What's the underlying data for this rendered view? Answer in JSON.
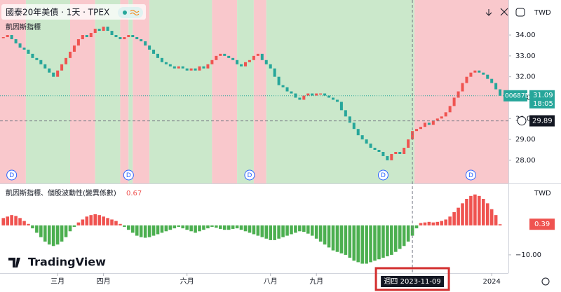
{
  "chart_data": [
    {
      "type": "candlestick",
      "title": "國泰20年美債 · 1天 · TPEX",
      "indicator_name": "凱因斯指標",
      "currency": "TWD",
      "symbol": "00687B",
      "countdown": "18:05",
      "up_color": "#ef5350",
      "down_color": "#26a69a",
      "series": [
        {
          "name": "00687B",
          "values": [
            33.9,
            34.0,
            33.8,
            33.6,
            33.4,
            33.3,
            33.1,
            32.9,
            32.8,
            32.6,
            32.4,
            32.2,
            32.0,
            32.3,
            32.6,
            32.9,
            33.2,
            33.5,
            33.8,
            34.0,
            33.9,
            34.1,
            34.3,
            34.2,
            34.4,
            34.2,
            34.0,
            33.9,
            33.8,
            33.9,
            34.0,
            33.9,
            33.8,
            33.7,
            33.5,
            33.3,
            33.1,
            32.9,
            32.7,
            32.6,
            32.5,
            32.4,
            32.5,
            32.4,
            32.3,
            32.4,
            32.3,
            32.5,
            32.4,
            32.6,
            32.8,
            33.0,
            33.1,
            33.0,
            32.9,
            32.8,
            32.6,
            32.5,
            32.7,
            32.8,
            33.0,
            33.1,
            32.8,
            32.6,
            32.4,
            32.0,
            31.6,
            31.5,
            31.3,
            31.2,
            31.0,
            30.9,
            31.1,
            31.2,
            31.1,
            31.2,
            31.2,
            31.1,
            31.0,
            30.9,
            30.8,
            30.4,
            30.1,
            29.8,
            29.5,
            29.2,
            29.0,
            28.8,
            28.6,
            28.5,
            28.4,
            28.2,
            28.0,
            28.3,
            28.4,
            28.3,
            28.6,
            29.0,
            29.4,
            29.5,
            29.6,
            29.8,
            29.7,
            29.9,
            30.0,
            30.1,
            30.3,
            30.6,
            31.0,
            31.3,
            31.7,
            32.0,
            32.2,
            32.3,
            32.2,
            32.1,
            31.9,
            31.7,
            31.4,
            31.09
          ]
        }
      ],
      "regimes": [
        {
          "start": -0.8,
          "end": 5.4,
          "color": "#f9c8cc"
        },
        {
          "start": 5.4,
          "end": 16,
          "color": "#cbe8cb"
        },
        {
          "start": 16,
          "end": 22,
          "color": "#f9c8cc"
        },
        {
          "start": 22,
          "end": 28,
          "color": "#cbe8cb"
        },
        {
          "start": 28,
          "end": 30,
          "color": "#f9c8cc"
        },
        {
          "start": 30,
          "end": 31,
          "color": "#cbe8cb"
        },
        {
          "start": 31,
          "end": 35,
          "color": "#f9c8cc"
        },
        {
          "start": 35,
          "end": 50,
          "color": "#cbe8cb"
        },
        {
          "start": 50,
          "end": 56,
          "color": "#f9c8cc"
        },
        {
          "start": 56,
          "end": 60,
          "color": "#cbe8cb"
        },
        {
          "start": 60,
          "end": 63,
          "color": "#f9c8cc"
        },
        {
          "start": 63,
          "end": 98.5,
          "color": "#cbe8cb"
        },
        {
          "start": 98.5,
          "end": 121,
          "color": "#f9c8cc"
        }
      ],
      "dividends": [
        {
          "label": "D",
          "x": 2
        },
        {
          "label": "D",
          "x": 30
        },
        {
          "label": "D",
          "x": 59
        },
        {
          "label": "D",
          "x": 91
        },
        {
          "label": "D",
          "x": 112
        }
      ],
      "xlim": [
        -0.8,
        121
      ],
      "xticks": [
        {
          "value": 13,
          "label": "三月"
        },
        {
          "value": 24,
          "label": "四月"
        },
        {
          "value": 44,
          "label": "六月"
        },
        {
          "value": 64,
          "label": "八月"
        },
        {
          "value": 75,
          "label": "九月"
        },
        {
          "value": 117,
          "label": "2024"
        }
      ],
      "ylim": [
        26.89,
        35.41
      ],
      "yticks": [
        {
          "value": 28,
          "label": "28.00"
        },
        {
          "value": 29,
          "label": "29.00"
        },
        {
          "value": 30,
          "label": "30.00"
        },
        {
          "value": 31,
          "label": "31.00"
        },
        {
          "value": 32,
          "label": "32.00"
        },
        {
          "value": 33,
          "label": "33.00"
        },
        {
          "value": 34,
          "label": "34.00"
        }
      ],
      "crosshair": {
        "x": 98,
        "label": "週四 2023-11-09",
        "price": 29.89
      },
      "logo": "TradingView"
    },
    {
      "type": "bar",
      "title": "凱因斯指標、個股波動性(變異係數)",
      "header_value": 0.67,
      "currency": "TWD",
      "up_color": "#ef5350",
      "down_color": "#4caf50",
      "values": [
        2.5,
        3.0,
        3.5,
        3.2,
        2.5,
        1.5,
        0.5,
        -1.0,
        -2.5,
        -4.0,
        -5.5,
        -6.5,
        -7.0,
        -6.5,
        -5.5,
        -4.0,
        -2.0,
        -0.5,
        1.0,
        2.0,
        3.0,
        3.5,
        3.8,
        3.5,
        3.0,
        2.5,
        2.0,
        1.5,
        0.5,
        -0.5,
        -1.5,
        -2.5,
        -3.5,
        -4.0,
        -4.2,
        -4.0,
        -3.5,
        -3.0,
        -2.5,
        -2.0,
        -1.5,
        -1.0,
        -0.5,
        -1.0,
        -1.5,
        -2.0,
        -2.5,
        -2.0,
        -1.5,
        -1.0,
        -0.5,
        -0.8,
        -1.2,
        -1.5,
        -1.5,
        -1.2,
        -1.0,
        -1.5,
        -2.0,
        -2.5,
        -3.0,
        -3.5,
        -4.0,
        -4.5,
        -5.0,
        -5.0,
        -4.5,
        -4.0,
        -3.5,
        -3.0,
        -2.5,
        -2.0,
        -2.2,
        -2.8,
        -3.5,
        -4.5,
        -5.5,
        -6.5,
        -7.5,
        -8.5,
        -9.0,
        -9.5,
        -10.0,
        -11.0,
        -12.0,
        -12.5,
        -13.0,
        -13.0,
        -12.5,
        -12.0,
        -11.5,
        -11.0,
        -10.5,
        -10.0,
        -9.0,
        -8.0,
        -7.0,
        -5.5,
        -3.5,
        -1.0,
        0.8,
        1.0,
        1.2,
        1.0,
        1.2,
        1.5,
        2.0,
        3.0,
        4.5,
        6.0,
        7.5,
        9.0,
        10.0,
        10.5,
        10.0,
        9.0,
        7.5,
        5.5,
        3.5,
        0.39
      ],
      "ylim": [
        -16.2,
        14
      ],
      "yticks": [
        {
          "value": -10,
          "label": "−10.00"
        }
      ]
    }
  ]
}
